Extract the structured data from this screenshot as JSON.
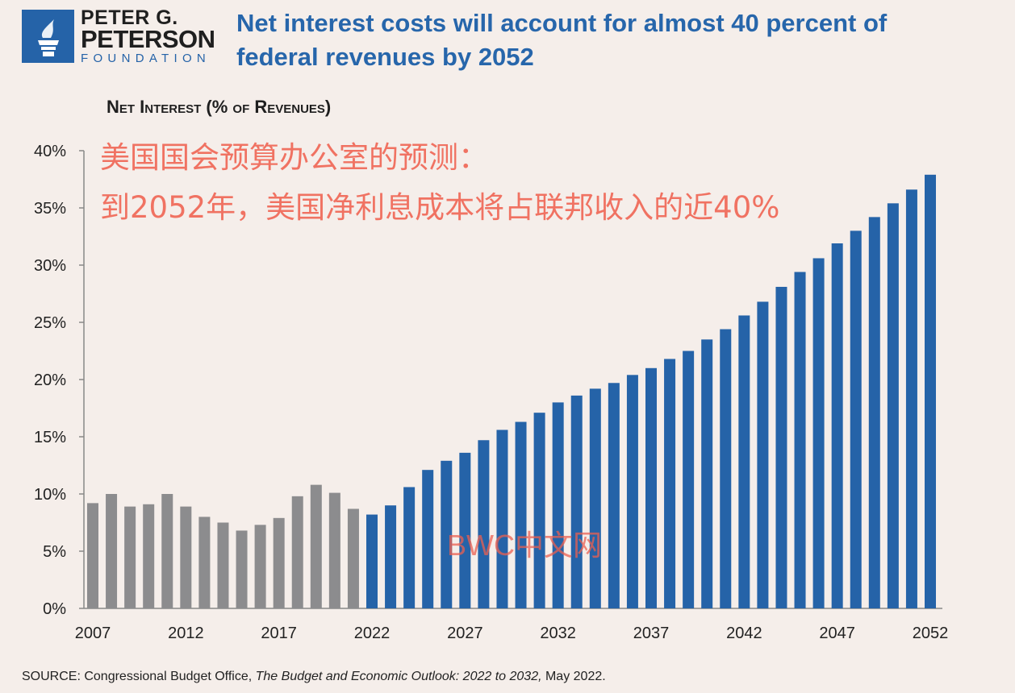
{
  "logo": {
    "line1": "PETER G.",
    "line2": "PETERSON",
    "line3": "FOUNDATION"
  },
  "annotation": {
    "line1": "美国国会预算办公室的预测：",
    "line2": "到2052年，美国净利息成本将占联邦收入的近40%"
  },
  "watermark": "BWC中文网",
  "source": {
    "prefix": "SOURCE: Congressional Budget Office, ",
    "italic": "The Budget and Economic Outlook: 2022 to 2032,",
    "suffix": " May 2022."
  },
  "colors": {
    "historical": "#8c8c8e",
    "projected": "#2563a8",
    "title": "#2766ab",
    "annotation": "#f07262"
  },
  "chart_data": {
    "type": "bar",
    "title": "Net interest costs will account for almost 40 percent of federal revenues by 2052",
    "subtitle": "Net Interest (% of Revenues)",
    "xlabel": "",
    "ylabel": "",
    "ylim": [
      0,
      40
    ],
    "yticks": [
      "0%",
      "5%",
      "10%",
      "15%",
      "20%",
      "25%",
      "30%",
      "35%",
      "40%"
    ],
    "xticks": [
      "2007",
      "2012",
      "2017",
      "2022",
      "2027",
      "2032",
      "2037",
      "2042",
      "2047",
      "2052"
    ],
    "categories": [
      2007,
      2008,
      2009,
      2010,
      2011,
      2012,
      2013,
      2014,
      2015,
      2016,
      2017,
      2018,
      2019,
      2020,
      2021,
      2022,
      2023,
      2024,
      2025,
      2026,
      2027,
      2028,
      2029,
      2030,
      2031,
      2032,
      2033,
      2034,
      2035,
      2036,
      2037,
      2038,
      2039,
      2040,
      2041,
      2042,
      2043,
      2044,
      2045,
      2046,
      2047,
      2048,
      2049,
      2050,
      2051,
      2052
    ],
    "values": [
      9.2,
      10.0,
      8.9,
      9.1,
      10.0,
      8.9,
      8.0,
      7.5,
      6.8,
      7.3,
      7.9,
      9.8,
      10.8,
      10.1,
      8.7,
      8.2,
      9.0,
      10.6,
      12.1,
      12.9,
      13.6,
      14.7,
      15.6,
      16.3,
      17.1,
      18.0,
      18.6,
      19.2,
      19.7,
      20.4,
      21.0,
      21.8,
      22.5,
      23.5,
      24.4,
      25.6,
      26.8,
      28.1,
      29.4,
      30.6,
      31.9,
      33.0,
      34.2,
      35.4,
      36.6,
      37.9
    ],
    "series_split": {
      "historical_through": 2021,
      "projected_from": 2022
    }
  }
}
